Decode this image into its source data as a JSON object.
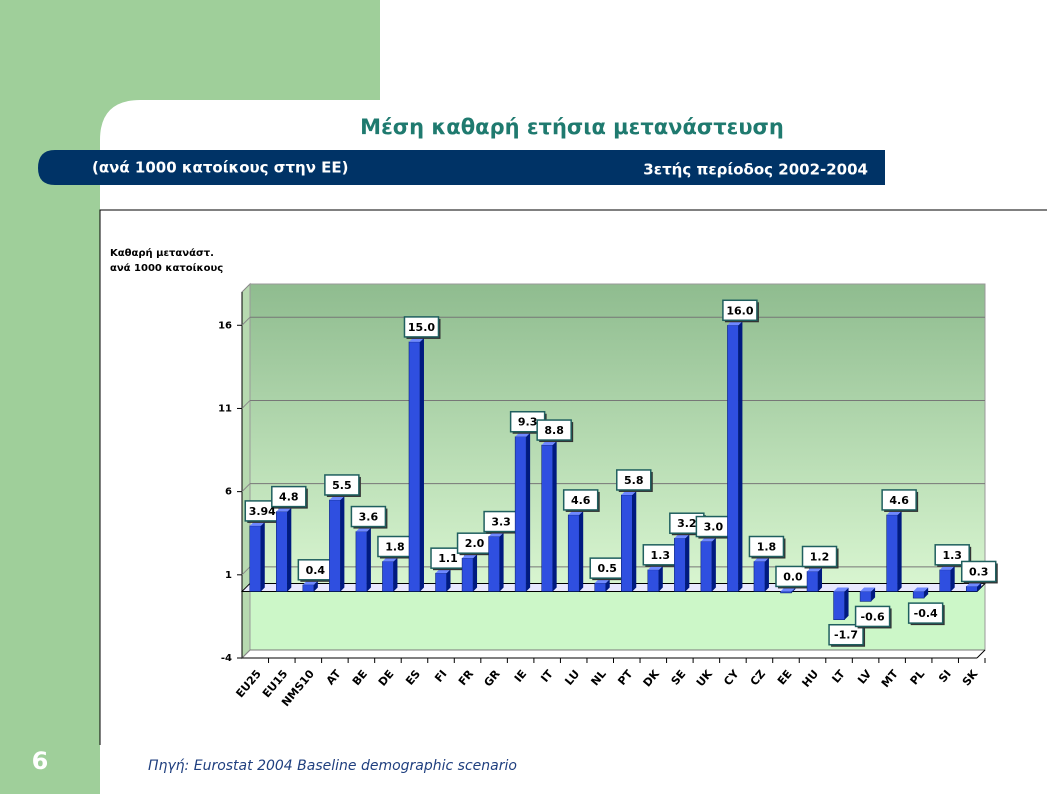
{
  "slide": {
    "title": "Μέση καθαρή ετήσια μετανάστευση",
    "subtitle_left": "(ανά 1000 κατοίκους στην ΕΕ)",
    "subtitle_right": "3ετής περίοδος 2002-2004",
    "page_number": "6",
    "source": "Πηγή: Eurostat 2004 Baseline demographic scenario"
  },
  "chart_data": {
    "type": "bar",
    "y_label": [
      "Καθαρή μετανάστ.",
      "ανά 1000 κατοίκους"
    ],
    "categories": [
      "EU25",
      "EU15",
      "NMS10",
      "AT",
      "BE",
      "DE",
      "ES",
      "FI",
      "FR",
      "GR",
      "IE",
      "IT",
      "LU",
      "NL",
      "PT",
      "DK",
      "SE",
      "UK",
      "CY",
      "CZ",
      "EE",
      "HU",
      "LT",
      "LV",
      "MT",
      "PL",
      "SI",
      "SK"
    ],
    "values": [
      3.94,
      4.8,
      0.4,
      5.5,
      3.6,
      1.8,
      15.0,
      1.1,
      2.0,
      3.3,
      9.3,
      8.8,
      4.6,
      0.5,
      5.8,
      1.3,
      3.2,
      3.0,
      16.0,
      1.8,
      0.0,
      1.2,
      -1.7,
      -0.6,
      4.6,
      -0.4,
      1.3,
      0.3
    ],
    "value_labels": [
      "3.94",
      "4.8",
      "0.4",
      "5.5",
      "3.6",
      "1.8",
      "15.0",
      "1.1",
      "2.0",
      "3.3",
      "9.3",
      "8.8",
      "4.6",
      "0.5",
      "5.8",
      "1.3",
      "3.2",
      "3.0",
      "16.0",
      "1.8",
      "0.0",
      "1.2",
      "-1.7",
      "-0.6",
      "4.6",
      "-0.4",
      "1.3",
      "0.3"
    ],
    "color": "#2f4fe0",
    "ylim": [
      -4,
      18
    ],
    "yticks": [
      -4,
      1,
      6,
      11,
      16
    ],
    "grid": true
  }
}
